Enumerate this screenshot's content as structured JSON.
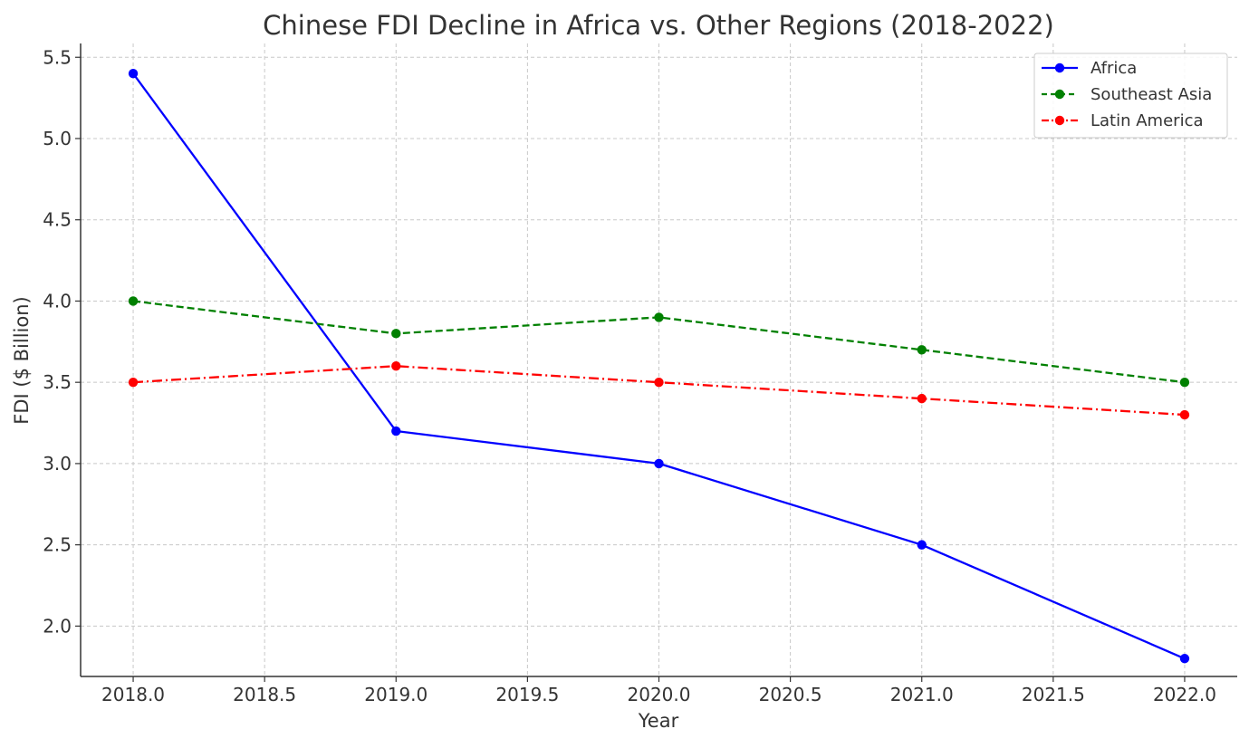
{
  "chart_data": {
    "type": "line",
    "title": "Chinese FDI Decline in Africa vs. Other Regions (2018-2022)",
    "xlabel": "Year",
    "ylabel": "FDI ($ Billion)",
    "x": [
      2018,
      2019,
      2020,
      2021,
      2022
    ],
    "xlim": [
      2017.8,
      2022.2
    ],
    "ylim": [
      1.69,
      5.585
    ],
    "xticks": [
      2018.0,
      2018.5,
      2019.0,
      2019.5,
      2020.0,
      2020.5,
      2021.0,
      2021.5,
      2022.0
    ],
    "xtick_labels": [
      "2018.0",
      "2018.5",
      "2019.0",
      "2019.5",
      "2020.0",
      "2020.5",
      "2021.0",
      "2021.5",
      "2022.0"
    ],
    "yticks": [
      2.0,
      2.5,
      3.0,
      3.5,
      4.0,
      4.5,
      5.0,
      5.5
    ],
    "ytick_labels": [
      "2.0",
      "2.5",
      "3.0",
      "3.5",
      "4.0",
      "4.5",
      "5.0",
      "5.5"
    ],
    "grid": true,
    "legend_position": "top-right",
    "series": [
      {
        "name": "Africa",
        "values": [
          5.4,
          3.2,
          3.0,
          2.5,
          1.8
        ],
        "color": "#0000ff",
        "line_style": "solid",
        "marker": "circle"
      },
      {
        "name": "Southeast Asia",
        "values": [
          4.0,
          3.8,
          3.9,
          3.7,
          3.5
        ],
        "color": "#008000",
        "line_style": "dashed",
        "marker": "circle"
      },
      {
        "name": "Latin America",
        "values": [
          3.5,
          3.6,
          3.5,
          3.4,
          3.3
        ],
        "color": "#ff0000",
        "line_style": "dashdot",
        "marker": "circle"
      }
    ]
  }
}
